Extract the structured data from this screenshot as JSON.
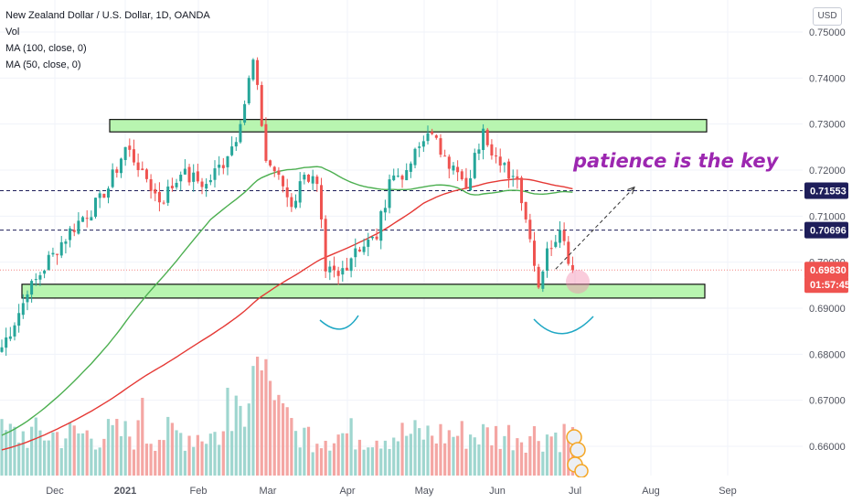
{
  "header": {
    "title": "New Zealand Dollar / U.S. Dollar, 1D, OANDA",
    "indicators": [
      "Vol",
      "MA (100, close, 0)",
      "MA (50, close, 0)"
    ],
    "currency": "USD"
  },
  "annotation": {
    "text": "patience is the key",
    "color": "#9c27b0"
  },
  "colors": {
    "up": "#26a69a",
    "down": "#ef5350",
    "vol_up": "#9fd6cf",
    "vol_down": "#f4a6a3",
    "ma100": "#e53935",
    "ma50": "#4caf50",
    "zone": "#b8f5b0"
  },
  "chart_data": {
    "type": "candlestick",
    "symbol": "NZDUSD",
    "x_ticks": [
      "Dec",
      "2021",
      "Feb",
      "Mar",
      "Apr",
      "May",
      "Jun",
      "Jul",
      "Aug",
      "Sep"
    ],
    "y_ticks": [
      "0.75000",
      "0.74000",
      "0.73000",
      "0.72000",
      "0.71000",
      "0.70000",
      "0.69000",
      "0.68000",
      "0.67000",
      "0.66000"
    ],
    "ylim": [
      0.6545,
      0.7525
    ],
    "price_labels": [
      {
        "text": "0.71553",
        "value": 0.71553,
        "bg": "#1e1e5a",
        "fg": "#ffffff"
      },
      {
        "text": "0.70696",
        "value": 0.70696,
        "bg": "#1e1e5a",
        "fg": "#ffffff"
      },
      {
        "text": "0.69830",
        "value": 0.6983,
        "bg": "#ef5350",
        "fg": "#ffffff"
      },
      {
        "text": "01:57:45",
        "value": 0.6961,
        "bg": "#ef5350",
        "fg": "#ffffff"
      }
    ],
    "horizontal_lines": [
      0.71553,
      0.70696
    ],
    "current_price": 0.6983,
    "zones": [
      {
        "from_index": 23,
        "to_index": 153,
        "low": 0.7283,
        "high": 0.731
      },
      {
        "from_index": 0,
        "to_index": 165,
        "low": 0.6922,
        "high": 0.6952
      }
    ],
    "projection": {
      "from_index": 130,
      "from_value": 0.6985,
      "to_index": 145,
      "to_value": 0.7163
    },
    "ma100_label": "MA (100, close, 0)",
    "ma50_label": "MA (50, close, 0)",
    "waypoints": [
      {
        "i": 0,
        "p": 0.6815
      },
      {
        "i": 6,
        "p": 0.693
      },
      {
        "i": 12,
        "p": 0.702
      },
      {
        "i": 18,
        "p": 0.709
      },
      {
        "i": 24,
        "p": 0.714
      },
      {
        "i": 29,
        "p": 0.725
      },
      {
        "i": 33,
        "p": 0.72
      },
      {
        "i": 37,
        "p": 0.713
      },
      {
        "i": 42,
        "p": 0.719
      },
      {
        "i": 48,
        "p": 0.717
      },
      {
        "i": 53,
        "p": 0.723
      },
      {
        "i": 56,
        "p": 0.73
      },
      {
        "i": 59,
        "p": 0.744
      },
      {
        "i": 60,
        "p": 0.7385
      },
      {
        "i": 62,
        "p": 0.722
      },
      {
        "i": 65,
        "p": 0.719
      },
      {
        "i": 68,
        "p": 0.712
      },
      {
        "i": 71,
        "p": 0.719
      },
      {
        "i": 74,
        "p": 0.717
      },
      {
        "i": 76,
        "p": 0.698
      },
      {
        "i": 79,
        "p": 0.697
      },
      {
        "i": 83,
        "p": 0.703
      },
      {
        "i": 88,
        "p": 0.705
      },
      {
        "i": 91,
        "p": 0.718
      },
      {
        "i": 95,
        "p": 0.72
      },
      {
        "i": 100,
        "p": 0.728
      },
      {
        "i": 104,
        "p": 0.723
      },
      {
        "i": 109,
        "p": 0.716
      },
      {
        "i": 113,
        "p": 0.729
      },
      {
        "i": 117,
        "p": 0.721
      },
      {
        "i": 121,
        "p": 0.718
      },
      {
        "i": 124,
        "p": 0.705
      },
      {
        "i": 126,
        "p": 0.6945
      },
      {
        "i": 128,
        "p": 0.703
      },
      {
        "i": 131,
        "p": 0.707
      },
      {
        "i": 134,
        "p": 0.6983
      }
    ]
  }
}
